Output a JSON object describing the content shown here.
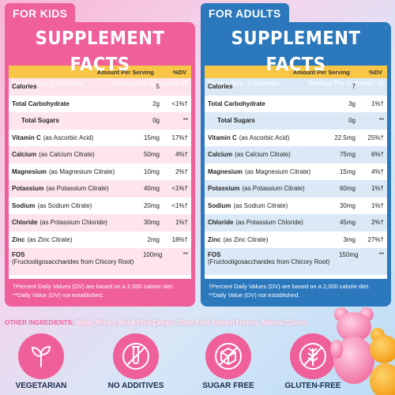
{
  "kids": {
    "tab": "FOR KIDS",
    "title": "SUPPLEMENT FACTS",
    "serving_size": "Serving Size: 2 Gummies",
    "servings_per_container": "Servings Per Container: 45",
    "amount_header": "Amount Per Serving",
    "dv_header": "%DV",
    "rows": [
      {
        "name": "Calories",
        "detail": "",
        "amount": "5",
        "dv": ""
      },
      {
        "name": "Total Carbohydrate",
        "detail": "",
        "amount": "2g",
        "dv": "<1%†"
      },
      {
        "name": "Total Sugars",
        "detail": "",
        "amount": "0g",
        "dv": "**"
      },
      {
        "name": "Vitamin C",
        "detail": "(as Ascorbic Acid)",
        "amount": "15mg",
        "dv": "17%†"
      },
      {
        "name": "Calcium",
        "detail": "(as Calcium Citrate)",
        "amount": "50mg",
        "dv": "4%†"
      },
      {
        "name": "Magnesium",
        "detail": "(as Magnesium Citrate)",
        "amount": "10mg",
        "dv": "2%†"
      },
      {
        "name": "Potassium",
        "detail": "(as Potassium Citrate)",
        "amount": "40mg",
        "dv": "<1%†"
      },
      {
        "name": "Sodium",
        "detail": "(as Sodium Citrate)",
        "amount": "20mg",
        "dv": "<1%†"
      },
      {
        "name": "Chloride",
        "detail": "(as Potassium Chloride)",
        "amount": "30mg",
        "dv": "1%†"
      },
      {
        "name": "Zinc",
        "detail": "(as Zinc Citrate)",
        "amount": "2mg",
        "dv": "18%†"
      },
      {
        "name": "FOS",
        "detail": "(Fructooligosaccharides from Chicory Root)",
        "amount": "100mg",
        "dv": "**"
      }
    ],
    "footnote1": "†Percent Daily Values (DV) are based on a 2,000 calorie diet.",
    "footnote2": "**Daily Value (DV) not established."
  },
  "adults": {
    "tab": "FOR ADULTS",
    "title": "SUPPLEMENT FACTS",
    "serving_size": "Serving Size: 3 Gummies",
    "servings_per_container": "Servings Per Container: 30",
    "amount_header": "Amount Per Serving",
    "dv_header": "%DV",
    "rows": [
      {
        "name": "Calories",
        "detail": "",
        "amount": "7",
        "dv": ""
      },
      {
        "name": "Total Carbohydrate",
        "detail": "",
        "amount": "3g",
        "dv": "1%†"
      },
      {
        "name": "Total Sugars",
        "detail": "",
        "amount": "0g",
        "dv": "**"
      },
      {
        "name": "Vitamin C",
        "detail": "(as Ascorbic Acid)",
        "amount": "22.5mg",
        "dv": "25%†"
      },
      {
        "name": "Calcium",
        "detail": "(as Calcium Citrate)",
        "amount": "75mg",
        "dv": "6%†"
      },
      {
        "name": "Magnesium",
        "detail": "(as Magnesium Citrate)",
        "amount": "15mg",
        "dv": "4%†"
      },
      {
        "name": "Potassium",
        "detail": "(as Potassium Citrate)",
        "amount": "60mg",
        "dv": "1%†"
      },
      {
        "name": "Sodium",
        "detail": "(as Sodium Citrate)",
        "amount": "30mg",
        "dv": "1%†"
      },
      {
        "name": "Chloride",
        "detail": "(as Potassium Chloride)",
        "amount": "45mg",
        "dv": "2%†"
      },
      {
        "name": "Zinc",
        "detail": "(as Zinc Citrate)",
        "amount": "3mg",
        "dv": "27%†"
      },
      {
        "name": "FOS",
        "detail": "(Fructooligosaccharides from Chicory Root)",
        "amount": "150mg",
        "dv": "**"
      }
    ],
    "footnote1": "†Percent Daily Values (DV) are based on a 2,000 calorie diet.",
    "footnote2": "**Daily Value (DV) not established."
  },
  "other_ingredients": {
    "label": "OTHER INGREDIENTS:",
    "text": "Water, Pectin, Monk Fruit Extract, Citric Acid, Natural Flavors, Natural Colors."
  },
  "badges": [
    {
      "icon": "sprout-icon",
      "label": "VEGETARIAN"
    },
    {
      "icon": "no-test-tube-icon",
      "label": "NO ADDITIVES"
    },
    {
      "icon": "no-sugar-cube-icon",
      "label": "SUGAR FREE"
    },
    {
      "icon": "no-wheat-icon",
      "label": "GLUTEN-FREE"
    }
  ],
  "colors": {
    "kids_pink": "#ef5f9a",
    "adults_blue": "#2b78bd",
    "amount_yellow": "#f7c646",
    "badge_pink": "#ef5f9a",
    "label_navy": "#1d2b4a"
  }
}
